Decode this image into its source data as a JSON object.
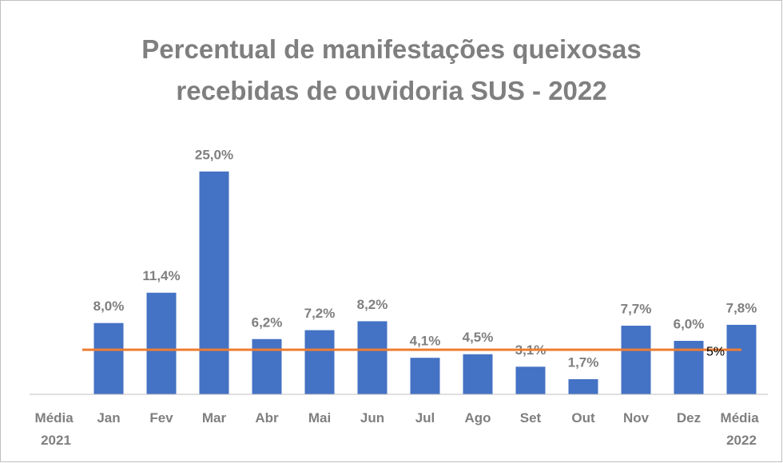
{
  "chart_data": {
    "type": "bar",
    "title": "Percentual de manifestações queixosas recebidas de ouvidoria SUS - 2022",
    "categories": [
      "Média 2021",
      "Jan",
      "Fev",
      "Mar",
      "Abr",
      "Mai",
      "Jun",
      "Jul",
      "Ago",
      "Set",
      "Out",
      "Nov",
      "Dez",
      "Média 2022"
    ],
    "values": [
      null,
      8.0,
      11.4,
      25.0,
      6.2,
      7.2,
      8.2,
      4.1,
      4.5,
      3.1,
      1.7,
      7.7,
      6.0,
      7.8
    ],
    "value_labels": [
      null,
      "8,0%",
      "11,4%",
      "25,0%",
      "6,2%",
      "7,2%",
      "8,2%",
      "4,1%",
      "4,5%",
      "3,1%",
      "1,7%",
      "7,7%",
      "6,0%",
      "7,8%"
    ],
    "color": "#4472c4",
    "ylim": [
      0,
      30
    ],
    "reference_line": {
      "value": 5,
      "label": "5%",
      "color": "#ed7d31"
    }
  }
}
